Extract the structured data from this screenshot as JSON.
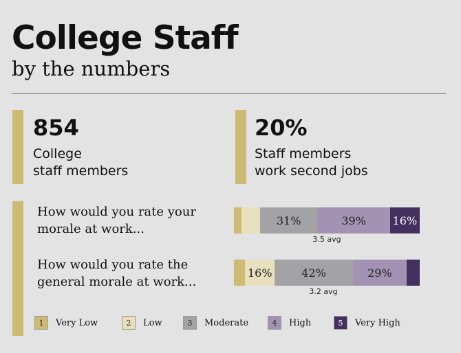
{
  "header": {
    "title": "College Staff",
    "subtitle": "by the numbers"
  },
  "stats": [
    {
      "value": "854",
      "label_line1": "College",
      "label_line2": "staff members"
    },
    {
      "value": "20%",
      "label_line1": "Staff members",
      "label_line2": "work second jobs"
    }
  ],
  "colors": {
    "accent": "#cdbb73",
    "levels": [
      "#cdbb73",
      "#e8e0bd",
      "#a3a3a5",
      "#a293b4",
      "#44305f"
    ]
  },
  "chart_data": {
    "type": "bar",
    "orientation": "horizontal-stacked",
    "categories": [
      "How would you rate your morale at work...",
      "How would you rate the general morale at work..."
    ],
    "series": [
      {
        "name": "Very Low",
        "values": [
          4,
          6
        ]
      },
      {
        "name": "Low",
        "values": [
          10,
          16
        ]
      },
      {
        "name": "Moderate",
        "values": [
          31,
          42
        ]
      },
      {
        "name": "High",
        "values": [
          39,
          29
        ]
      },
      {
        "name": "Very High",
        "values": [
          16,
          7
        ]
      }
    ],
    "data_labels": [
      [
        "",
        "",
        "31%",
        "39%",
        "16%"
      ],
      [
        "",
        "16%",
        "42%",
        "29%",
        ""
      ]
    ],
    "averages": [
      "3.5 avg",
      "3.2 avg"
    ],
    "legend": [
      {
        "number": "1",
        "label": "Very Low"
      },
      {
        "number": "2",
        "label": "Low"
      },
      {
        "number": "3",
        "label": "Moderate"
      },
      {
        "number": "4",
        "label": "High"
      },
      {
        "number": "5",
        "label": "Very High"
      }
    ],
    "legend_position": "bottom"
  }
}
